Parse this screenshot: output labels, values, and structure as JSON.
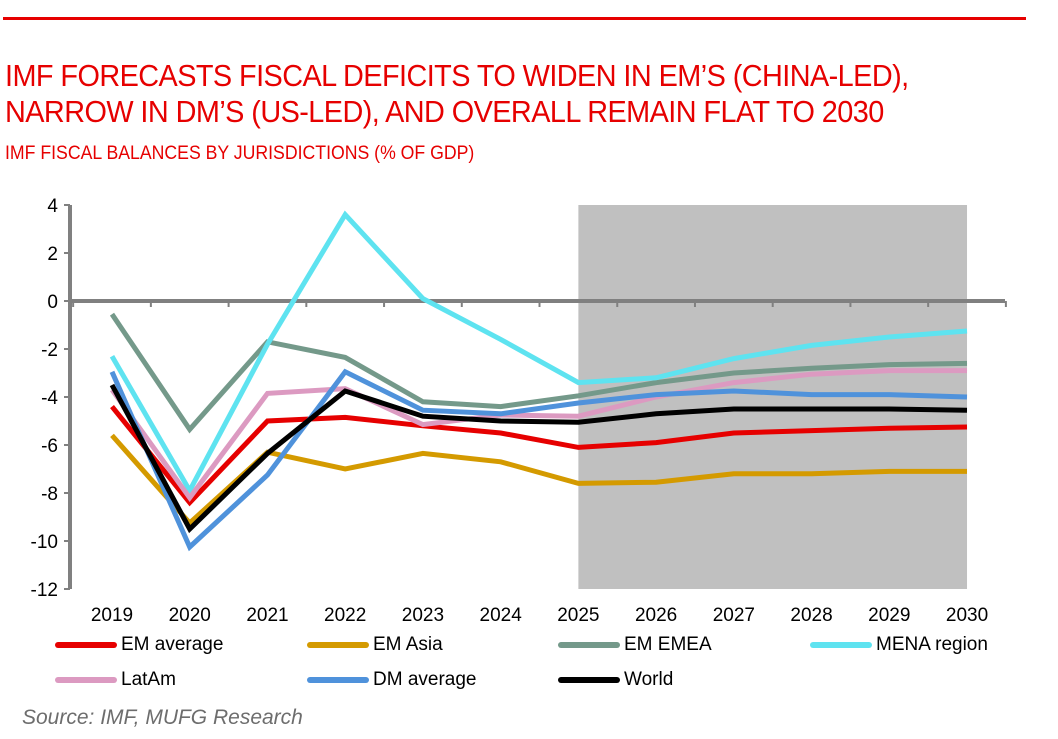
{
  "header": {
    "title_line1": "IMF FORECASTS FISCAL DEFICITS TO WIDEN IN EM’S (CHINA-LED),",
    "title_line2": "NARROW IN DM’S (US-LED), AND OVERALL REMAIN FLAT TO 2030",
    "subtitle": "IMF FISCAL BALANCES BY JURISDICTIONS (% OF GDP)",
    "accent_color": "#e60000"
  },
  "source": "Source: IMF, MUFG Research",
  "chart_data": {
    "type": "line",
    "title": "IMF FISCAL BALANCES BY JURISDICTIONS (% OF GDP)",
    "xlabel": "",
    "ylabel": "",
    "categories": [
      "2019",
      "2020",
      "2021",
      "2022",
      "2023",
      "2024",
      "2025",
      "2026",
      "2027",
      "2028",
      "2029",
      "2030"
    ],
    "ylim": [
      -12,
      4
    ],
    "yticks": [
      4,
      2,
      0,
      -2,
      -4,
      -6,
      -8,
      -10,
      -12
    ],
    "grid": false,
    "forecast_shading": {
      "from": "2025",
      "to": "2030",
      "color": "#c0c0c0"
    },
    "legend_position": "bottom",
    "series": [
      {
        "name": "EM average",
        "color": "#e60000",
        "values": [
          -4.4,
          -8.4,
          -5.0,
          -4.85,
          -5.2,
          -5.5,
          -6.1,
          -5.9,
          -5.5,
          -5.4,
          -5.3,
          -5.25
        ]
      },
      {
        "name": "EM Asia",
        "color": "#d49a00",
        "values": [
          -5.6,
          -9.25,
          -6.3,
          -7.0,
          -6.35,
          -6.7,
          -7.6,
          -7.55,
          -7.2,
          -7.2,
          -7.1,
          -7.1
        ]
      },
      {
        "name": "EM EMEA",
        "color": "#74998a",
        "values": [
          -0.55,
          -5.35,
          -1.7,
          -2.35,
          -4.2,
          -4.4,
          -3.95,
          -3.4,
          -3.0,
          -2.8,
          -2.65,
          -2.6
        ]
      },
      {
        "name": "MENA region",
        "color": "#5ee3f0",
        "values": [
          -2.3,
          -7.9,
          -1.8,
          3.6,
          0.1,
          -1.6,
          -3.4,
          -3.2,
          -2.4,
          -1.85,
          -1.5,
          -1.25
        ]
      },
      {
        "name": "LatAm",
        "color": "#dc9ac1",
        "values": [
          -3.7,
          -8.2,
          -3.85,
          -3.65,
          -5.15,
          -4.75,
          -4.8,
          -4.0,
          -3.4,
          -3.05,
          -2.9,
          -2.9
        ]
      },
      {
        "name": "DM average",
        "color": "#4f92db",
        "values": [
          -2.95,
          -10.25,
          -7.25,
          -2.95,
          -4.55,
          -4.7,
          -4.25,
          -3.9,
          -3.75,
          -3.9,
          -3.9,
          -4.0
        ]
      },
      {
        "name": "World",
        "color": "#000000",
        "values": [
          -3.5,
          -9.5,
          -6.35,
          -3.75,
          -4.8,
          -5.0,
          -5.05,
          -4.7,
          -4.5,
          -4.5,
          -4.5,
          -4.55
        ]
      }
    ]
  }
}
